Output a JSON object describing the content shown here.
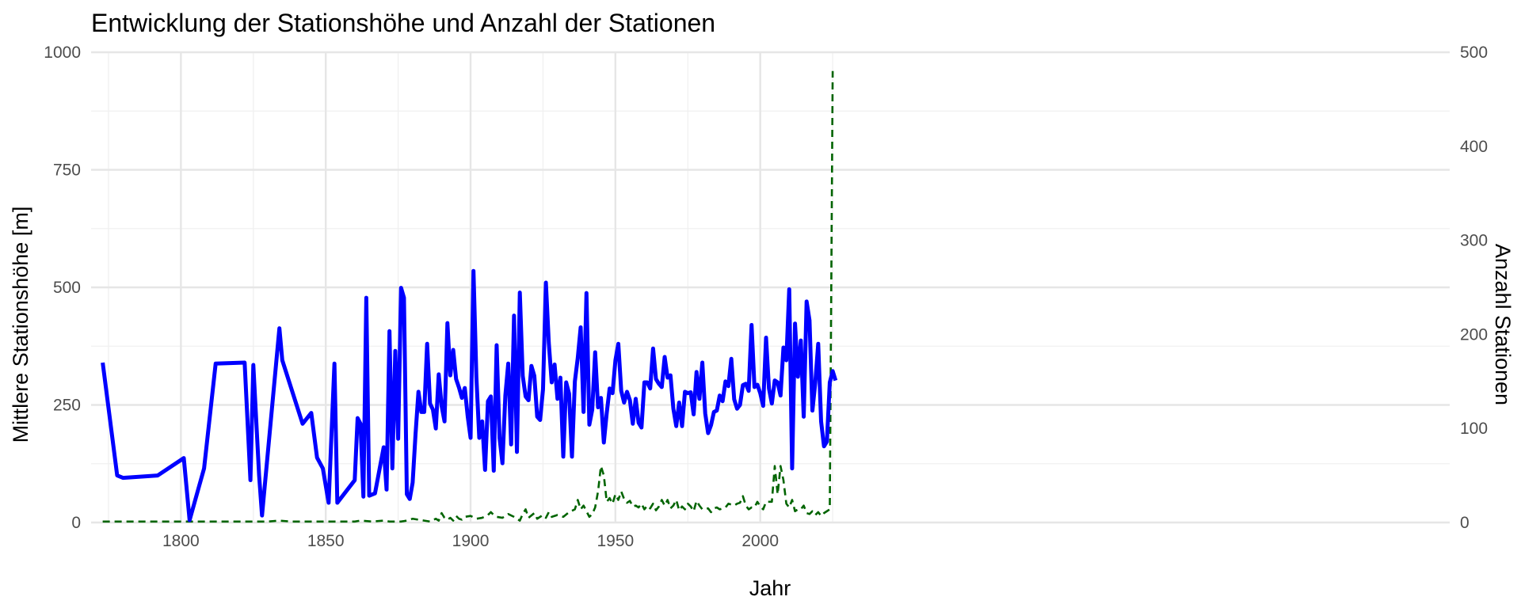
{
  "chart_data": {
    "type": "line",
    "title": "Entwicklung der Stationshöhe und Anzahl der Stationen",
    "xlabel": "Jahr",
    "ylabel": "Mittlere Stationshöhe [m]",
    "y2label": "Anzahl Stationen",
    "xlim": [
      1769,
      2238
    ],
    "ylim": [
      0,
      1000
    ],
    "y2lim": [
      0,
      500
    ],
    "x_ticks": [
      1800,
      1850,
      1900,
      1950,
      2000
    ],
    "y_ticks": [
      0,
      250,
      500,
      750,
      1000
    ],
    "y2_ticks": [
      0,
      100,
      200,
      300,
      400,
      500
    ],
    "grid": true,
    "series": [
      {
        "axis": "left",
        "style": "solid",
        "color": "#0000ff",
        "points": [
          [
            1773,
            340
          ],
          [
            1778,
            100
          ],
          [
            1780,
            95
          ],
          [
            1792,
            100
          ],
          [
            1801,
            137
          ],
          [
            1803,
            5
          ],
          [
            1808,
            115
          ],
          [
            1812,
            338
          ],
          [
            1822,
            340
          ],
          [
            1824,
            90
          ],
          [
            1825,
            335
          ],
          [
            1827,
            100
          ],
          [
            1828,
            15
          ],
          [
            1834,
            413
          ],
          [
            1835,
            345
          ],
          [
            1842,
            210
          ],
          [
            1845,
            233
          ],
          [
            1847,
            138
          ],
          [
            1849,
            115
          ],
          [
            1851,
            42
          ],
          [
            1853,
            338
          ],
          [
            1854,
            42
          ],
          [
            1860,
            90
          ],
          [
            1861,
            222
          ],
          [
            1862,
            210
          ],
          [
            1863,
            55
          ],
          [
            1864,
            478
          ],
          [
            1865,
            57
          ],
          [
            1867,
            62
          ],
          [
            1870,
            160
          ],
          [
            1871,
            70
          ],
          [
            1872,
            407
          ],
          [
            1873,
            115
          ],
          [
            1874,
            365
          ],
          [
            1875,
            178
          ],
          [
            1876,
            499
          ],
          [
            1877,
            478
          ],
          [
            1878,
            60
          ],
          [
            1879,
            50
          ],
          [
            1880,
            85
          ],
          [
            1881,
            188
          ],
          [
            1882,
            278
          ],
          [
            1883,
            235
          ],
          [
            1884,
            235
          ],
          [
            1885,
            380
          ],
          [
            1886,
            253
          ],
          [
            1887,
            240
          ],
          [
            1888,
            200
          ],
          [
            1889,
            315
          ],
          [
            1890,
            248
          ],
          [
            1891,
            215
          ],
          [
            1892,
            424
          ],
          [
            1893,
            313
          ],
          [
            1894,
            367
          ],
          [
            1895,
            305
          ],
          [
            1896,
            287
          ],
          [
            1897,
            265
          ],
          [
            1898,
            286
          ],
          [
            1899,
            226
          ],
          [
            1900,
            180
          ],
          [
            1901,
            535
          ],
          [
            1902,
            310
          ],
          [
            1903,
            180
          ],
          [
            1904,
            215
          ],
          [
            1905,
            112
          ],
          [
            1906,
            258
          ],
          [
            1907,
            268
          ],
          [
            1908,
            110
          ],
          [
            1909,
            377
          ],
          [
            1910,
            180
          ],
          [
            1911,
            126
          ],
          [
            1912,
            270
          ],
          [
            1913,
            338
          ],
          [
            1914,
            166
          ],
          [
            1915,
            440
          ],
          [
            1916,
            150
          ],
          [
            1917,
            489
          ],
          [
            1918,
            312
          ],
          [
            1919,
            268
          ],
          [
            1920,
            260
          ],
          [
            1921,
            333
          ],
          [
            1922,
            312
          ],
          [
            1923,
            225
          ],
          [
            1924,
            218
          ],
          [
            1925,
            283
          ],
          [
            1926,
            510
          ],
          [
            1927,
            382
          ],
          [
            1928,
            298
          ],
          [
            1929,
            336
          ],
          [
            1930,
            263
          ],
          [
            1931,
            308
          ],
          [
            1932,
            140
          ],
          [
            1933,
            298
          ],
          [
            1934,
            274
          ],
          [
            1935,
            140
          ],
          [
            1936,
            300
          ],
          [
            1937,
            350
          ],
          [
            1938,
            415
          ],
          [
            1939,
            235
          ],
          [
            1940,
            488
          ],
          [
            1941,
            208
          ],
          [
            1942,
            240
          ],
          [
            1943,
            362
          ],
          [
            1944,
            245
          ],
          [
            1945,
            265
          ],
          [
            1946,
            170
          ],
          [
            1947,
            233
          ],
          [
            1948,
            285
          ],
          [
            1949,
            275
          ],
          [
            1950,
            345
          ],
          [
            1951,
            380
          ],
          [
            1952,
            280
          ],
          [
            1953,
            255
          ],
          [
            1954,
            278
          ],
          [
            1955,
            260
          ],
          [
            1956,
            210
          ],
          [
            1957,
            263
          ],
          [
            1958,
            212
          ],
          [
            1959,
            202
          ],
          [
            1960,
            298
          ],
          [
            1961,
            298
          ],
          [
            1962,
            285
          ],
          [
            1963,
            370
          ],
          [
            1964,
            305
          ],
          [
            1965,
            295
          ],
          [
            1966,
            288
          ],
          [
            1967,
            352
          ],
          [
            1968,
            308
          ],
          [
            1969,
            313
          ],
          [
            1970,
            242
          ],
          [
            1971,
            205
          ],
          [
            1972,
            255
          ],
          [
            1973,
            205
          ],
          [
            1974,
            278
          ],
          [
            1975,
            275
          ],
          [
            1976,
            277
          ],
          [
            1977,
            230
          ],
          [
            1978,
            320
          ],
          [
            1979,
            263
          ],
          [
            1980,
            340
          ],
          [
            1981,
            232
          ],
          [
            1982,
            190
          ],
          [
            1983,
            207
          ],
          [
            1984,
            235
          ],
          [
            1985,
            238
          ],
          [
            1986,
            270
          ],
          [
            1987,
            258
          ],
          [
            1988,
            300
          ],
          [
            1989,
            290
          ],
          [
            1990,
            348
          ],
          [
            1991,
            262
          ],
          [
            1992,
            242
          ],
          [
            1993,
            250
          ],
          [
            1994,
            292
          ],
          [
            1995,
            295
          ],
          [
            1996,
            280
          ],
          [
            1997,
            420
          ],
          [
            1998,
            288
          ],
          [
            1999,
            293
          ],
          [
            2000,
            275
          ],
          [
            2001,
            248
          ],
          [
            2002,
            393
          ],
          [
            2003,
            285
          ],
          [
            2004,
            253
          ],
          [
            2005,
            302
          ],
          [
            2006,
            298
          ],
          [
            2007,
            270
          ],
          [
            2008,
            372
          ],
          [
            2009,
            345
          ],
          [
            2010,
            496
          ],
          [
            2011,
            115
          ],
          [
            2012,
            423
          ],
          [
            2013,
            310
          ],
          [
            2014,
            387
          ],
          [
            2015,
            225
          ],
          [
            2016,
            470
          ],
          [
            2017,
            430
          ],
          [
            2018,
            238
          ],
          [
            2019,
            298
          ],
          [
            2020,
            380
          ],
          [
            2021,
            215
          ],
          [
            2022,
            162
          ],
          [
            2023,
            172
          ],
          [
            2024,
            298
          ],
          [
            2025,
            322
          ],
          [
            2026,
            302
          ]
        ]
      },
      {
        "axis": "right",
        "style": "dashed",
        "color": "#006400",
        "points": [
          [
            1773,
            1
          ],
          [
            1800,
            1
          ],
          [
            1830,
            1
          ],
          [
            1834,
            2
          ],
          [
            1838,
            1
          ],
          [
            1860,
            1
          ],
          [
            1862,
            2
          ],
          [
            1866,
            1
          ],
          [
            1870,
            2
          ],
          [
            1872,
            1
          ],
          [
            1876,
            1
          ],
          [
            1878,
            2
          ],
          [
            1880,
            4
          ],
          [
            1882,
            3
          ],
          [
            1884,
            2
          ],
          [
            1886,
            1
          ],
          [
            1888,
            4
          ],
          [
            1889,
            2
          ],
          [
            1890,
            10
          ],
          [
            1891,
            5
          ],
          [
            1892,
            3
          ],
          [
            1893,
            5
          ],
          [
            1894,
            2
          ],
          [
            1895,
            7
          ],
          [
            1896,
            4
          ],
          [
            1897,
            3
          ],
          [
            1898,
            6
          ],
          [
            1900,
            7
          ],
          [
            1902,
            4
          ],
          [
            1904,
            5
          ],
          [
            1906,
            8
          ],
          [
            1907,
            11
          ],
          [
            1908,
            8
          ],
          [
            1909,
            6
          ],
          [
            1911,
            5
          ],
          [
            1913,
            9
          ],
          [
            1915,
            6
          ],
          [
            1917,
            2
          ],
          [
            1918,
            9
          ],
          [
            1919,
            14
          ],
          [
            1920,
            5
          ],
          [
            1922,
            10
          ],
          [
            1923,
            4
          ],
          [
            1924,
            6
          ],
          [
            1925,
            8
          ],
          [
            1926,
            5
          ],
          [
            1927,
            11
          ],
          [
            1928,
            6
          ],
          [
            1930,
            8
          ],
          [
            1932,
            6
          ],
          [
            1934,
            11
          ],
          [
            1936,
            14
          ],
          [
            1937,
            24
          ],
          [
            1938,
            14
          ],
          [
            1939,
            18
          ],
          [
            1941,
            6
          ],
          [
            1942,
            9
          ],
          [
            1943,
            16
          ],
          [
            1944,
            33
          ],
          [
            1945,
            60
          ],
          [
            1946,
            50
          ],
          [
            1947,
            22
          ],
          [
            1948,
            26
          ],
          [
            1949,
            20
          ],
          [
            1950,
            30
          ],
          [
            1951,
            24
          ],
          [
            1952,
            33
          ],
          [
            1953,
            25
          ],
          [
            1954,
            21
          ],
          [
            1955,
            23
          ],
          [
            1956,
            17
          ],
          [
            1957,
            18
          ],
          [
            1958,
            16
          ],
          [
            1959,
            20
          ],
          [
            1960,
            14
          ],
          [
            1961,
            18
          ],
          [
            1962,
            15
          ],
          [
            1963,
            20
          ],
          [
            1964,
            13
          ],
          [
            1965,
            17
          ],
          [
            1966,
            24
          ],
          [
            1967,
            18
          ],
          [
            1968,
            24
          ],
          [
            1969,
            15
          ],
          [
            1970,
            18
          ],
          [
            1971,
            24
          ],
          [
            1972,
            13
          ],
          [
            1973,
            17
          ],
          [
            1974,
            14
          ],
          [
            1975,
            20
          ],
          [
            1976,
            17
          ],
          [
            1977,
            12
          ],
          [
            1978,
            23
          ],
          [
            1979,
            18
          ],
          [
            1980,
            14
          ],
          [
            1982,
            15
          ],
          [
            1983,
            11
          ],
          [
            1984,
            15
          ],
          [
            1985,
            16
          ],
          [
            1986,
            14
          ],
          [
            1987,
            15
          ],
          [
            1988,
            16
          ],
          [
            1989,
            20
          ],
          [
            1990,
            19
          ],
          [
            1991,
            18
          ],
          [
            1992,
            20
          ],
          [
            1993,
            21
          ],
          [
            1994,
            28
          ],
          [
            1995,
            18
          ],
          [
            1996,
            14
          ],
          [
            1997,
            16
          ],
          [
            1998,
            16
          ],
          [
            1999,
            22
          ],
          [
            2000,
            17
          ],
          [
            2001,
            14
          ],
          [
            2002,
            22
          ],
          [
            2003,
            22
          ],
          [
            2004,
            22
          ],
          [
            2005,
            60
          ],
          [
            2006,
            30
          ],
          [
            2007,
            60
          ],
          [
            2008,
            45
          ],
          [
            2009,
            20
          ],
          [
            2010,
            16
          ],
          [
            2011,
            24
          ],
          [
            2012,
            12
          ],
          [
            2013,
            14
          ],
          [
            2014,
            14
          ],
          [
            2015,
            18
          ],
          [
            2016,
            10
          ],
          [
            2017,
            9
          ],
          [
            2018,
            12
          ],
          [
            2019,
            8
          ],
          [
            2020,
            11
          ],
          [
            2021,
            7
          ],
          [
            2022,
            10
          ],
          [
            2023,
            12
          ],
          [
            2024,
            14
          ],
          [
            2025,
            480
          ]
        ]
      }
    ]
  }
}
